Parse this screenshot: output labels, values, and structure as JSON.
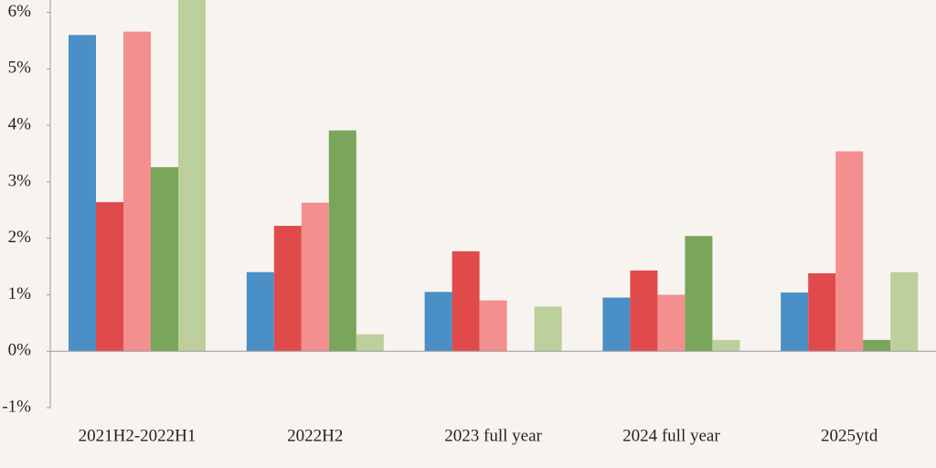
{
  "chart_data": {
    "type": "bar",
    "categories": [
      "2021H2-2022H1",
      "2022H2",
      "2023 full year",
      "2024 full year",
      "2025ytd"
    ],
    "series": [
      {
        "color": "#4a8fc5",
        "values": [
          5.6,
          1.4,
          1.05,
          0.95,
          1.04
        ]
      },
      {
        "color": "#e04a4a",
        "values": [
          2.64,
          2.22,
          1.77,
          1.43,
          1.38
        ]
      },
      {
        "color": "#f48f8f",
        "values": [
          5.66,
          2.63,
          0.9,
          1.0,
          3.54
        ]
      },
      {
        "color": "#79a65a",
        "values": [
          3.26,
          3.91,
          null,
          2.04,
          0.2
        ]
      },
      {
        "color": "#bccf9c",
        "values": [
          6.3,
          0.3,
          0.79,
          0.2,
          1.4
        ]
      }
    ],
    "ylim": [
      -1,
      6.22
    ],
    "yticks": [
      {
        "value": -1,
        "label": "-1%"
      },
      {
        "value": 0,
        "label": "0%"
      },
      {
        "value": 1,
        "label": "1%"
      },
      {
        "value": 2,
        "label": "2%"
      },
      {
        "value": 3,
        "label": "3%"
      },
      {
        "value": 4,
        "label": "4%"
      },
      {
        "value": 5,
        "label": "5%"
      },
      {
        "value": 6,
        "label": "6%"
      }
    ],
    "grid": false
  }
}
